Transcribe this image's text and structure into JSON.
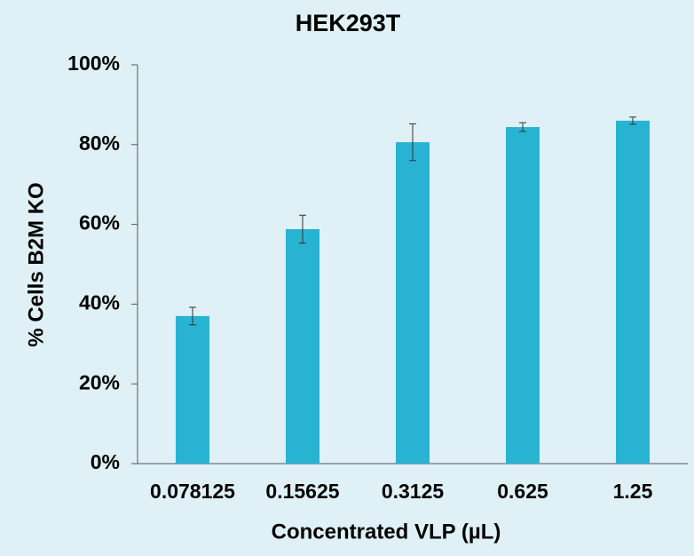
{
  "chart_data": {
    "type": "bar",
    "title": "HEK293T",
    "x_label": "Concentrated VLP (µL)",
    "y_label": "% Cells B2M KO",
    "categories": [
      "0.078125",
      "0.15625",
      "0.3125",
      "0.625",
      "1.25"
    ],
    "values": [
      37.0,
      58.8,
      80.6,
      84.4,
      86.0
    ],
    "errors": [
      2.2,
      3.5,
      4.6,
      1.1,
      0.9
    ],
    "color": "#29b3d3",
    "ylim": [
      0,
      100
    ],
    "yticks": [
      {
        "value": 0,
        "label": "0%"
      },
      {
        "value": 20,
        "label": "20%"
      },
      {
        "value": 40,
        "label": "40%"
      },
      {
        "value": 60,
        "label": "60%"
      },
      {
        "value": 80,
        "label": "80%"
      },
      {
        "value": 100,
        "label": "100%"
      }
    ]
  }
}
